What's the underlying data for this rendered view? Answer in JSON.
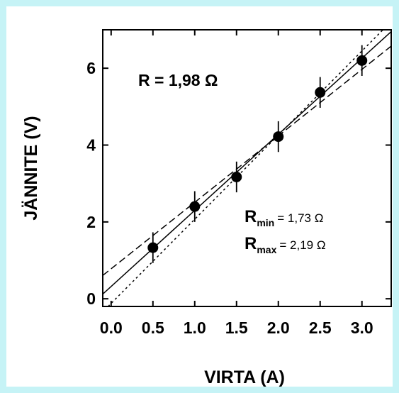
{
  "colors": {
    "frame": "#c6f3f6",
    "ink": "#000000",
    "background": "#ffffff"
  },
  "chart_data": {
    "type": "scatter",
    "xlabel": "VIRTA (A)",
    "ylabel": "JÄNNITE (V)",
    "xlim": [
      -0.1,
      3.35
    ],
    "ylim": [
      -0.2,
      7.0
    ],
    "x_ticks": [
      0.0,
      0.5,
      1.0,
      1.5,
      2.0,
      2.5,
      3.0
    ],
    "x_tick_labels": [
      "0.0",
      "0.5",
      "1.0",
      "1.5",
      "2.0",
      "2.5",
      "3.0"
    ],
    "y_ticks": [
      0,
      2,
      4,
      6
    ],
    "y_tick_labels": [
      "0",
      "2",
      "4",
      "6"
    ],
    "grid": false,
    "series": [
      {
        "x": [
          0.5,
          1.0,
          1.5,
          2.0,
          2.5,
          3.0
        ],
        "y": [
          1.33,
          2.4,
          3.17,
          4.22,
          5.37,
          6.2
        ],
        "yerr": [
          0.4,
          0.4,
          0.4,
          0.4,
          0.4,
          0.4
        ],
        "marker": "filled-circle"
      }
    ],
    "fit_lines": [
      {
        "style": "solid",
        "slope": 1.98,
        "intercept": 0.32
      },
      {
        "style": "dashed",
        "slope": 1.73,
        "intercept": 0.78
      },
      {
        "style": "dotted",
        "slope": 2.19,
        "intercept": -0.12
      }
    ],
    "annotations": {
      "r_fit": "R = 1,98 Ω",
      "r_min_symbol": "R",
      "r_min_sub": "min",
      "r_min_value": "= 1,73 Ω",
      "r_max_symbol": "R",
      "r_max_sub": "max",
      "r_max_value": "= 2,19 Ω"
    }
  }
}
